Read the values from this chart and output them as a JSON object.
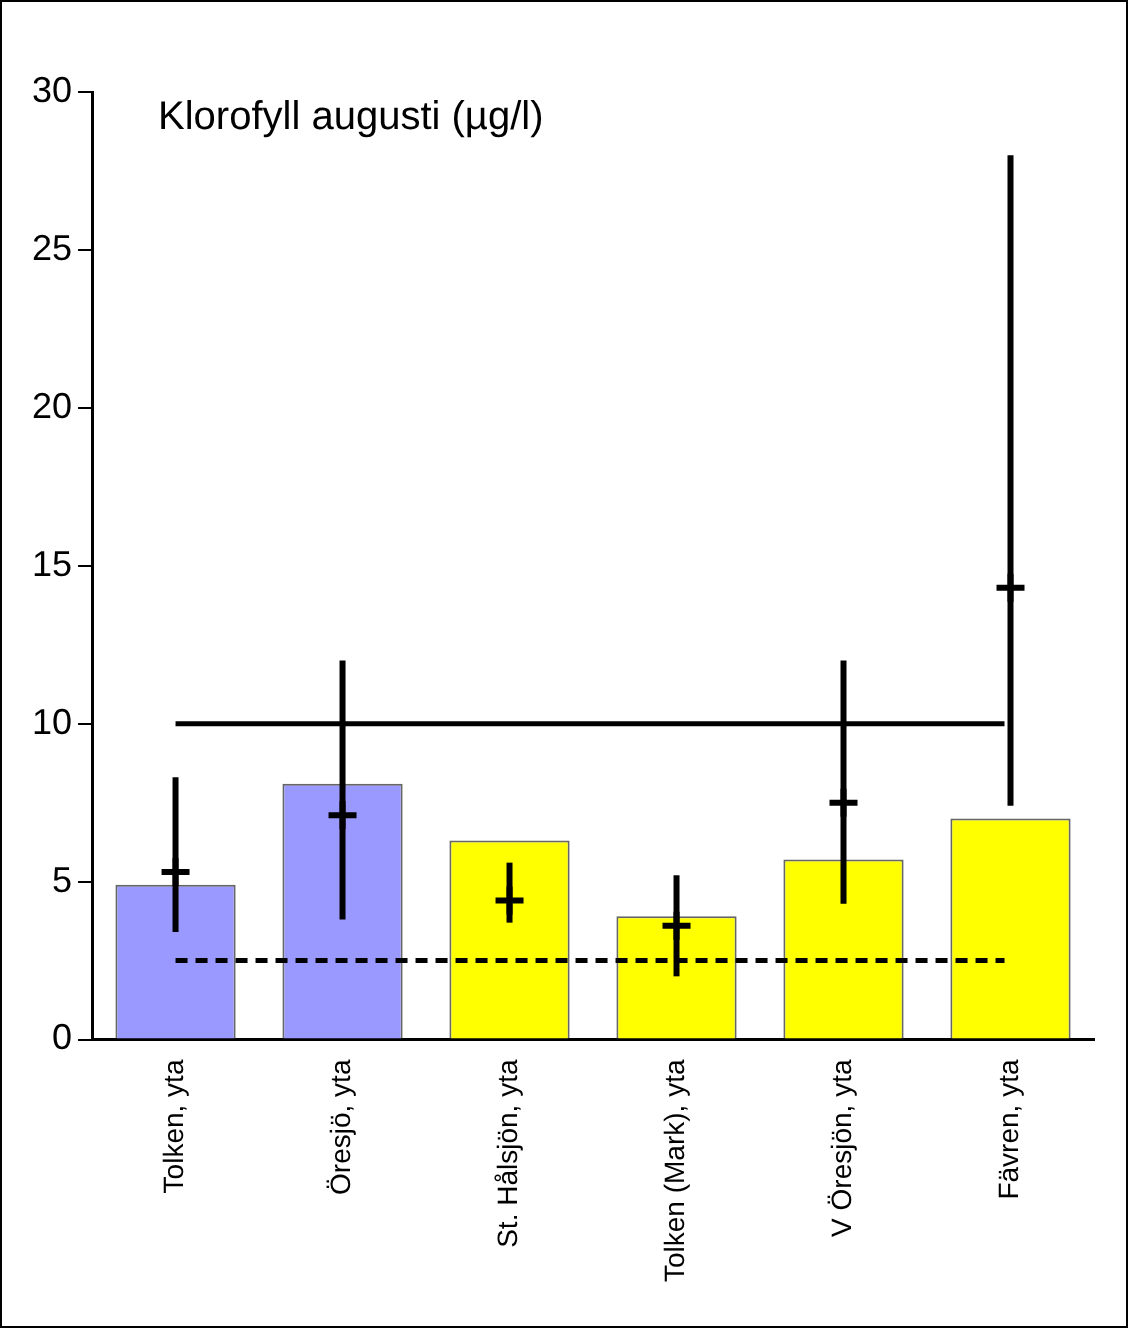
{
  "chart_data": {
    "type": "bar",
    "title": "Klorofyll augusti (µg/l)",
    "categories": [
      "Tolken, yta",
      "Öresjö, yta",
      "St. Hålsjön, yta",
      "Tolken (Mark), yta",
      "V Öresjön, yta",
      "Fävren, yta"
    ],
    "series": [
      {
        "type": "bar",
        "colors": [
          "#9999ff",
          "#9999ff",
          "#ffff00",
          "#ffff00",
          "#ffff00",
          "#ffff00"
        ],
        "values": [
          4.9,
          8.1,
          6.3,
          3.9,
          5.7,
          7.0
        ]
      },
      {
        "type": "scatter",
        "color": "#000000",
        "values": [
          5.3,
          7.1,
          4.4,
          3.6,
          7.5,
          14.3
        ],
        "errors": [
          [
            3.4,
            8.3
          ],
          [
            3.8,
            12.0
          ],
          [
            3.7,
            5.6
          ],
          [
            2.0,
            5.2
          ],
          [
            4.3,
            12.0
          ],
          [
            7.4,
            28.0
          ]
        ]
      }
    ],
    "marker": "cross",
    "ylim": [
      0,
      30
    ],
    "yticks": [
      0,
      5,
      10,
      15,
      20,
      25,
      30
    ],
    "grid": false,
    "legend": false,
    "ref_lines": [
      {
        "axis": "y",
        "value": 10,
        "line_style": "solid",
        "color": "#000000"
      },
      {
        "axis": "y",
        "value": 2.5,
        "line_style": "dashed",
        "color": "#000000"
      }
    ]
  }
}
